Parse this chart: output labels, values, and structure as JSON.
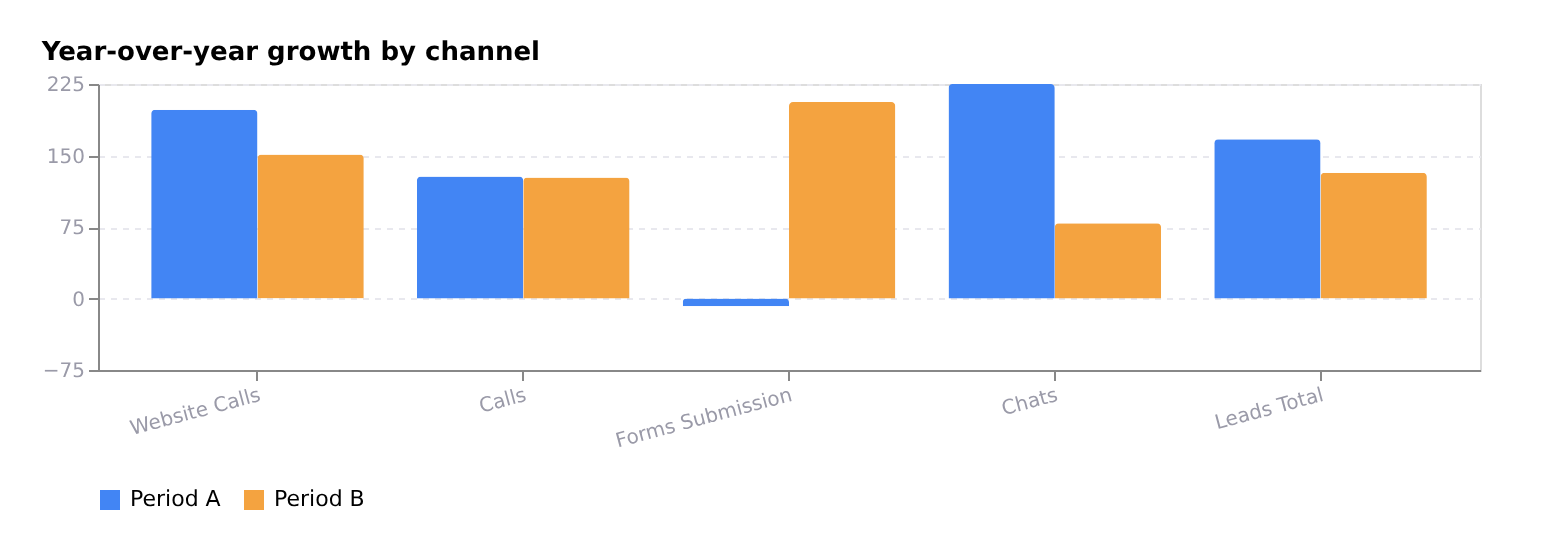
{
  "chart_data": {
    "type": "bar",
    "title": "Year-over-year growth by channel",
    "categories": [
      "Website Calls",
      "Calls",
      "Forms Submission",
      "Chats",
      "Leads Total"
    ],
    "series": [
      {
        "name": "Period A",
        "color": "#4285f4",
        "values": [
          198,
          128,
          -8,
          225,
          167
        ]
      },
      {
        "name": "Period B",
        "color": "#f4a340",
        "values": [
          151,
          127,
          206,
          79,
          132
        ]
      }
    ],
    "ylim": [
      -75,
      225
    ],
    "yticks": [
      -75,
      0,
      75,
      150,
      225
    ],
    "grid": "y",
    "legend": "bottom"
  }
}
